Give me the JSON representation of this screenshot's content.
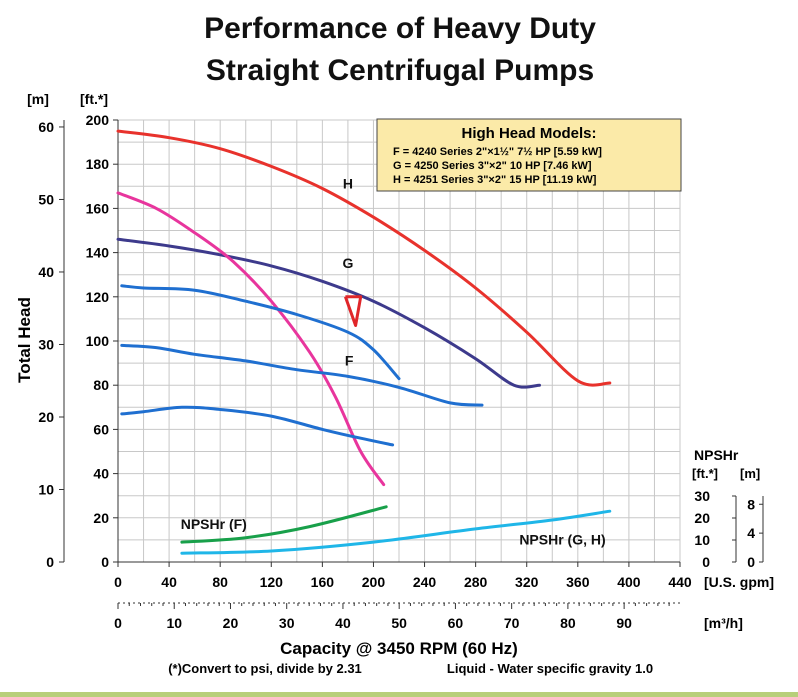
{
  "chart_data": {
    "type": "line",
    "title_lines": [
      "Performance of Heavy Duty",
      "Straight Centrifugal Pumps"
    ],
    "ylabel": "Total Head",
    "y_unit_m": "[m]",
    "y_unit_ft": "[ft.*]",
    "xlabel": "Capacity @ 3450 RPM (60 Hz)",
    "x_unit_gpm": "[U.S. gpm]",
    "x_unit_m3h": "[m³/h]",
    "footnote_left": "(*)Convert to psi, divide by 2.31",
    "footnote_right": "Liquid - Water specific gravity 1.0",
    "xlim": [
      0,
      440
    ],
    "ylim": [
      0,
      200
    ],
    "x_ticks_gpm": [
      "0",
      "40",
      "80",
      "120",
      "160",
      "200",
      "240",
      "280",
      "320",
      "360",
      "400",
      "440"
    ],
    "x_ticks_m3h": [
      "0",
      "10",
      "20",
      "30",
      "40",
      "50",
      "60",
      "70",
      "80",
      "90"
    ],
    "y_ticks_ft": [
      "0",
      "20",
      "40",
      "60",
      "80",
      "100",
      "120",
      "140",
      "160",
      "180",
      "200"
    ],
    "y_ticks_m": [
      "0",
      "10",
      "20",
      "30",
      "40",
      "50",
      "60"
    ],
    "grid": true,
    "legend_box": {
      "title": "High Head Models:",
      "lines": [
        "F = 4240 Series 2\"×1½\" 7½ HP [5.59 kW]",
        "G = 4250 Series 3\"×2\" 10 HP [7.46 kW]",
        "H = 4251 Series 3\"×2\" 15 HP [11.19 kW]"
      ]
    },
    "npsh_axis": {
      "title": "NPSHr",
      "unit_ft": "[ft.*]",
      "unit_m": "[m]",
      "ticks_ft": [
        "0",
        "10",
        "20",
        "30"
      ],
      "ticks_m": [
        "0",
        "4",
        "8"
      ]
    },
    "series": [
      {
        "name": "H",
        "color": "#e8322c",
        "x": [
          0,
          40,
          80,
          120,
          160,
          200,
          240,
          280,
          320,
          360,
          385
        ],
        "y": [
          195,
          192,
          187,
          179,
          169,
          156,
          141,
          124,
          104,
          82,
          81
        ]
      },
      {
        "name": "G",
        "color": "#3d3a8c",
        "x": [
          0,
          40,
          80,
          120,
          160,
          200,
          240,
          280,
          310,
          330
        ],
        "y": [
          146,
          143,
          139,
          134,
          127,
          118,
          106,
          92,
          80,
          80
        ]
      },
      {
        "name": "F",
        "color": "#e8359d",
        "x": [
          0,
          30,
          60,
          90,
          120,
          150,
          170,
          190,
          208
        ],
        "y": [
          167,
          160,
          149,
          136,
          118,
          95,
          75,
          50,
          35
        ]
      },
      {
        "name": "",
        "color": "#1f6fd0",
        "x": [
          3,
          20,
          60,
          100,
          140,
          180,
          200,
          220
        ],
        "y": [
          125,
          124,
          123,
          118,
          112,
          104,
          96,
          83
        ]
      },
      {
        "name": "",
        "color": "#1f6fd0",
        "x": [
          3,
          30,
          60,
          100,
          140,
          180,
          220,
          260,
          285
        ],
        "y": [
          98,
          97,
          94,
          91,
          87,
          84,
          79,
          72,
          71
        ]
      },
      {
        "name": "",
        "color": "#1f6fd0",
        "x": [
          3,
          20,
          50,
          80,
          120,
          160,
          190,
          215
        ],
        "y": [
          67,
          68,
          70,
          69,
          66,
          60,
          56,
          53
        ]
      },
      {
        "name": "NPSHr (F)",
        "color": "#18a04a",
        "x": [
          50,
          100,
          150,
          210
        ],
        "y": [
          9,
          11,
          16,
          25
        ]
      },
      {
        "name": "NPSHr (G, H)",
        "color": "#1fb6e8",
        "x": [
          50,
          120,
          200,
          280,
          340,
          385
        ],
        "y": [
          4,
          5,
          9,
          15,
          19,
          23
        ]
      }
    ],
    "curve_labels": [
      {
        "text": "H",
        "x": 180,
        "y": 169
      },
      {
        "text": "G",
        "x": 180,
        "y": 133
      },
      {
        "text": "F",
        "x": 181,
        "y": 89
      },
      {
        "text": "NPSHr (F)",
        "x": 75,
        "y": 15
      },
      {
        "text": "NPSHr (G, H)",
        "x": 348,
        "y": 8
      }
    ],
    "annotation_mark": {
      "color": "#e0262a",
      "x": [
        178,
        190,
        186,
        178
      ],
      "y": [
        120,
        120,
        107,
        120
      ]
    }
  }
}
